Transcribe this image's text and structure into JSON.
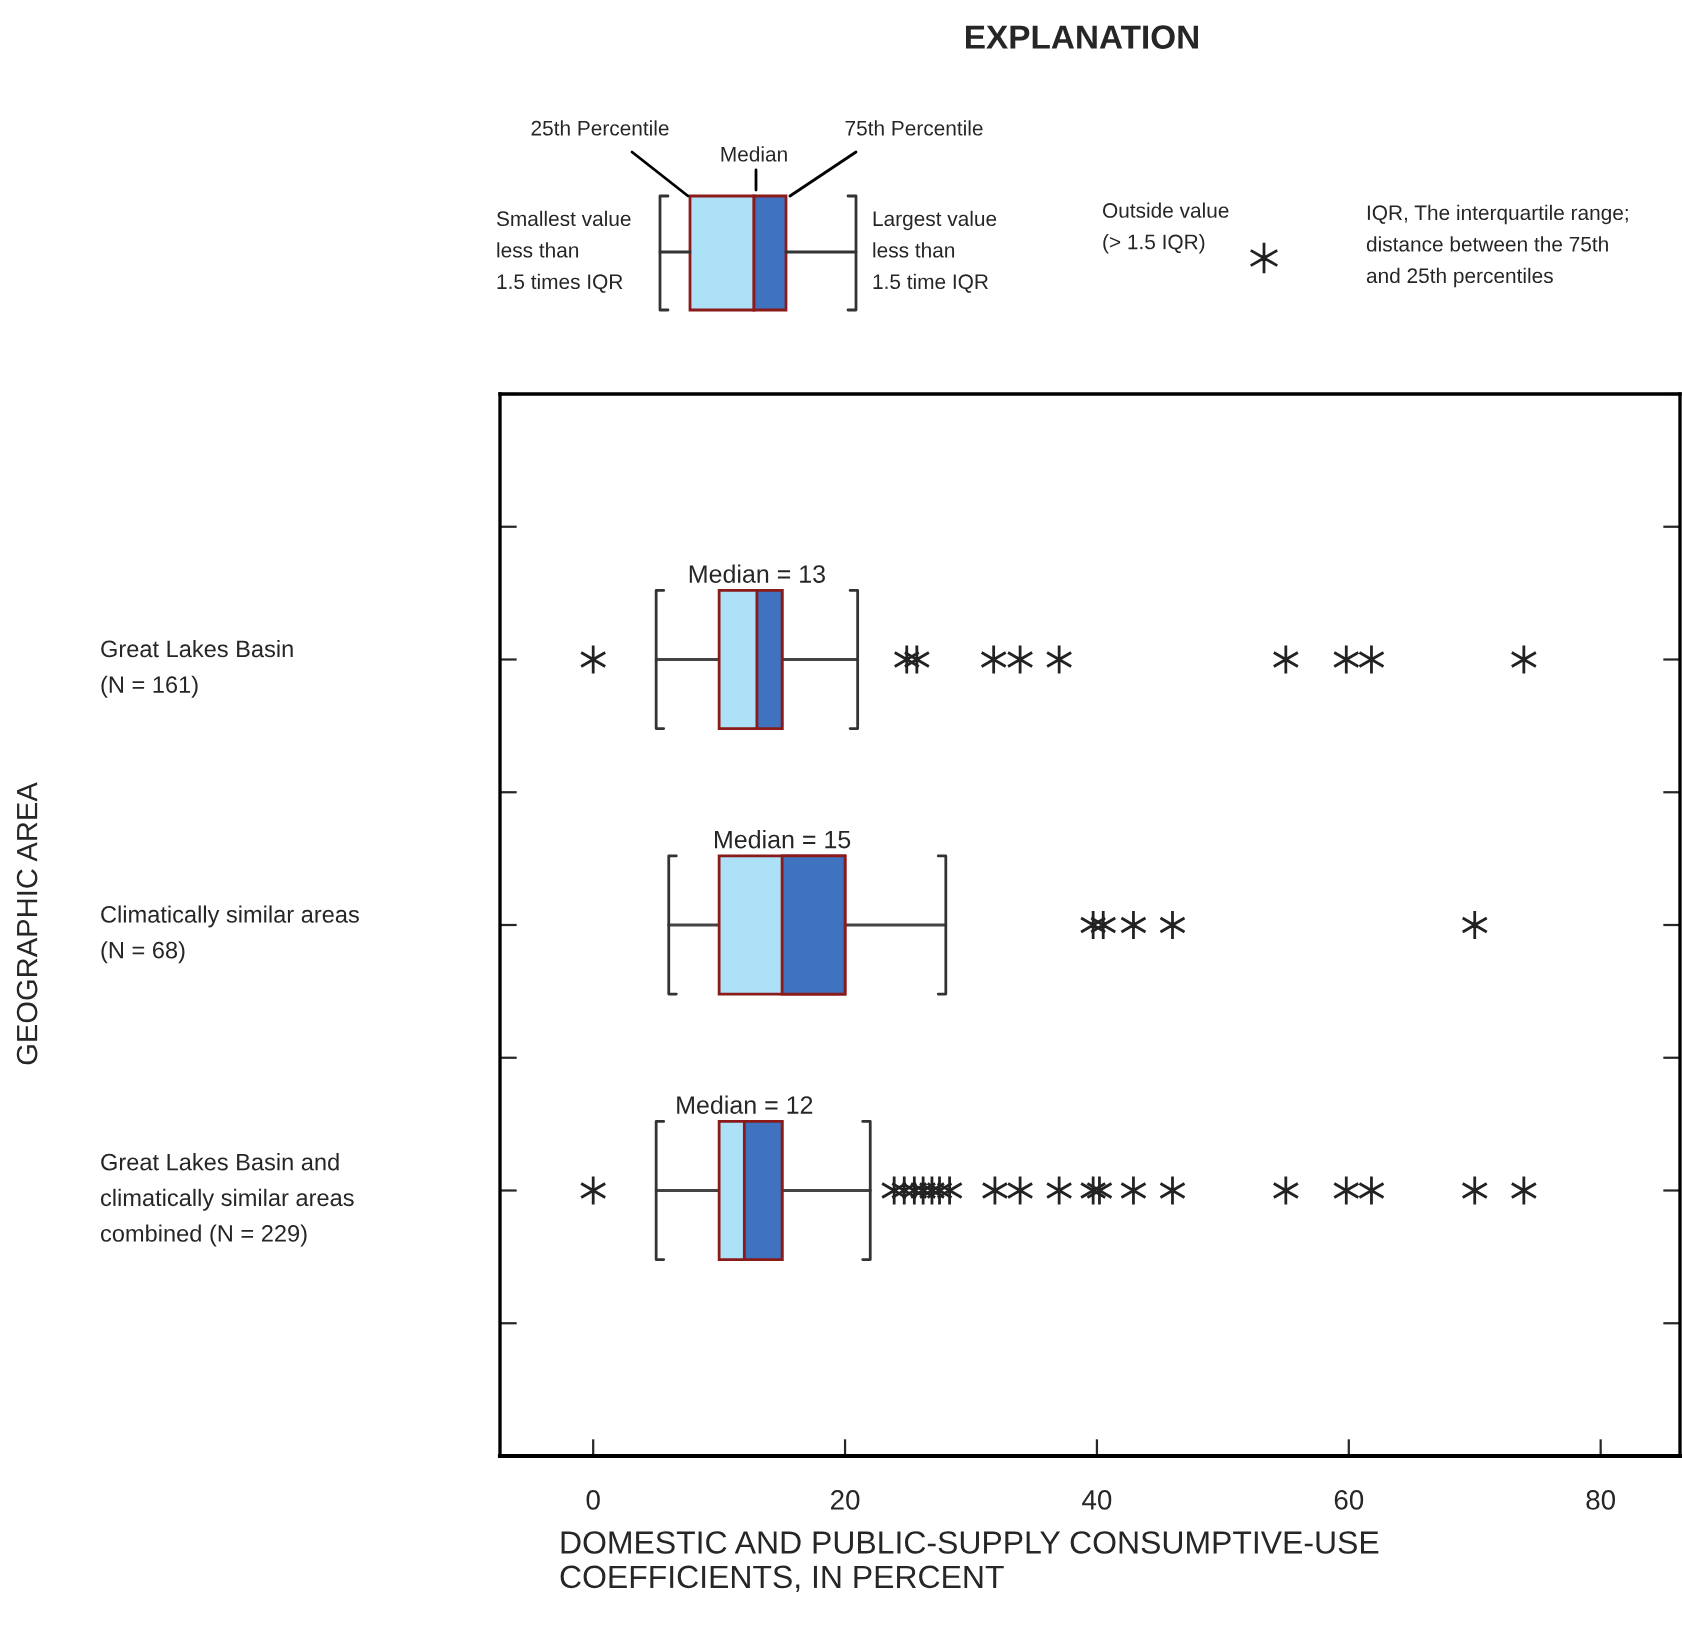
{
  "chart_data": {
    "type": "box",
    "orientation": "horizontal",
    "title": "EXPLANATION",
    "categories": [
      "Great Lakes Basin\n(N = 161)",
      "Climatically similar areas\n(N = 68)",
      "Great Lakes Basin and\nclimatically similar areas\ncombined (N = 229)"
    ],
    "boxes": [
      {
        "low": 5,
        "q1": 10,
        "median": 13,
        "q3": 15,
        "high": 21,
        "outliers": [
          0,
          24.9,
          25.7,
          31.8,
          33.9,
          37,
          55,
          59.8,
          61.8,
          73.9
        ]
      },
      {
        "low": 6,
        "q1": 10,
        "median": 15,
        "q3": 20,
        "high": 28,
        "outliers": [
          39.7,
          40.5,
          42.9,
          46,
          70
        ]
      },
      {
        "low": 5,
        "q1": 10,
        "median": 12,
        "q3": 15,
        "high": 22,
        "outliers": [
          0,
          23.9,
          24.7,
          25.5,
          26.2,
          26.9,
          27.5,
          28.3,
          31.9,
          33.9,
          37,
          39.7,
          40.2,
          42.9,
          46,
          55,
          59.8,
          61.8,
          70,
          73.9
        ]
      }
    ],
    "color": "#3f73bf",
    "colors": [
      "#ade1f8",
      "#ade1f8",
      "#ade1f8"
    ],
    "marker": "star",
    "xlabel": "DOMESTIC AND PUBLIC-SUPPLY CONSUMPTIVE-USE\nCOEFFICIENTS, IN PERCENT",
    "ylabel": "GEOGRAPHIC AREA",
    "xlim": [
      -7.4,
      86.3
    ],
    "xticks": [
      0,
      20,
      40,
      60,
      80
    ],
    "grid": false,
    "annotations": [
      "Median = 13",
      "Median = 15",
      "Median = 12",
      "25th Percentile",
      "Median",
      "75th Percentile",
      "Smallest value\nless than\n1.5 times IQR",
      "Largest value\nless than\n1.5 time IQR",
      "Outside value\n(> 1.5 IQR)",
      "IQR, The interquartile range;\ndistance between the 75th\nand 25th percentiles"
    ]
  }
}
